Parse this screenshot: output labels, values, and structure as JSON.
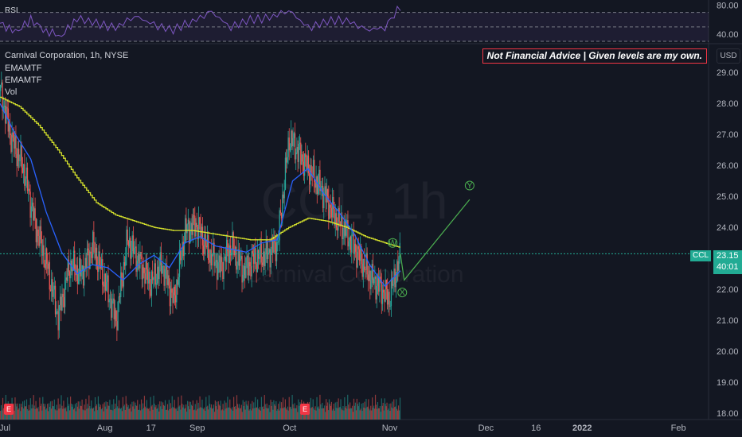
{
  "header": {
    "rsi_label": "RSI",
    "symbol_title": "Carnival Corporation, 1h, NYSE",
    "indicators": [
      "EMAMTF",
      "EMAMTF",
      "Vol"
    ],
    "notice": "Not Financial Advice | Given levels are my own.",
    "currency": "USD",
    "watermark": "CCL, 1h",
    "watermark_sub": "Carnival Corporation"
  },
  "last_price": {
    "ticker": "CCL",
    "price": "23.15",
    "countdown": "40:01",
    "color": "#22ab94"
  },
  "earnings_markers": [
    "E",
    "E"
  ],
  "chart_data": [
    {
      "type": "line",
      "name": "RSI",
      "y_ticks": [
        "80.00",
        "40.00"
      ],
      "ylim": [
        30,
        85
      ],
      "levels": [
        70,
        50,
        30
      ],
      "x": [
        0,
        4,
        8,
        12,
        16,
        20,
        25,
        30,
        35,
        40,
        45,
        50,
        55,
        60,
        65,
        70,
        75,
        80,
        85,
        90,
        95,
        100,
        104
      ],
      "values": [
        55,
        42,
        60,
        44,
        38,
        62,
        55,
        48,
        66,
        52,
        46,
        58,
        70,
        50,
        60,
        62,
        74,
        48,
        58,
        60,
        45,
        50,
        78
      ],
      "color": "#7e57c2"
    },
    {
      "type": "line",
      "title": "Carnival Corporation, 1h, NYSE",
      "x_ticks": [
        {
          "label": "Jul",
          "x": 0
        },
        {
          "label": "Aug",
          "x": 26
        },
        {
          "label": "17",
          "x": 38
        },
        {
          "label": "Sep",
          "x": 50
        },
        {
          "label": "Oct",
          "x": 74
        },
        {
          "label": "Nov",
          "x": 100
        },
        {
          "label": "Dec",
          "x": 125
        },
        {
          "label": "16",
          "x": 138
        },
        {
          "label": "2022",
          "x": 150
        },
        {
          "label": "Feb",
          "x": 175
        }
      ],
      "y_ticks": [
        "29.00",
        "28.00",
        "27.00",
        "26.00",
        "25.00",
        "24.00",
        "22.00",
        "21.00",
        "20.00",
        "19.00",
        "18.00"
      ],
      "ylim": [
        17.8,
        29.8
      ],
      "series": [
        {
          "name": "EMAMTF",
          "color": "#d4e02c",
          "x": [
            0,
            5,
            10,
            15,
            20,
            25,
            30,
            35,
            40,
            45,
            50,
            55,
            60,
            65,
            70,
            75,
            80,
            85,
            90,
            95,
            100,
            104
          ],
          "values": [
            28.2,
            27.9,
            27.3,
            26.5,
            25.6,
            24.8,
            24.4,
            24.2,
            24.0,
            23.9,
            23.9,
            23.8,
            23.7,
            23.6,
            23.6,
            24.0,
            24.3,
            24.2,
            24.0,
            23.7,
            23.5,
            23.35
          ]
        },
        {
          "name": "EMAMTF",
          "color": "#2962ff",
          "x": [
            0,
            4,
            8,
            12,
            16,
            20,
            24,
            28,
            32,
            36,
            40,
            44,
            48,
            52,
            56,
            60,
            64,
            68,
            72,
            76,
            80,
            84,
            88,
            92,
            96,
            100,
            104
          ],
          "values": [
            28.0,
            27.0,
            26.2,
            24.5,
            23.2,
            22.5,
            22.8,
            22.7,
            22.3,
            22.8,
            23.1,
            22.7,
            23.5,
            23.7,
            23.4,
            23.3,
            23.2,
            23.5,
            23.6,
            25.5,
            25.9,
            25.1,
            24.5,
            23.8,
            22.8,
            22.1,
            22.6
          ]
        },
        {
          "name": "Price",
          "color": "#26a69a",
          "x": [
            0,
            3,
            6,
            9,
            12,
            15,
            18,
            21,
            24,
            27,
            30,
            33,
            36,
            39,
            42,
            45,
            48,
            51,
            54,
            57,
            60,
            63,
            66,
            69,
            72,
            75,
            78,
            81,
            84,
            87,
            90,
            93,
            96,
            99,
            101,
            104
          ],
          "values": [
            28.4,
            26.8,
            25.9,
            24.1,
            22.8,
            21.1,
            22.8,
            22.5,
            23.4,
            22.3,
            21.0,
            23.6,
            22.9,
            22.2,
            22.8,
            21.6,
            23.9,
            24.1,
            23.2,
            22.7,
            23.4,
            22.6,
            23.0,
            23.1,
            23.5,
            26.9,
            26.3,
            25.7,
            25.1,
            24.3,
            23.8,
            23.1,
            22.4,
            22.0,
            21.7,
            23.15
          ]
        },
        {
          "name": "Projection",
          "color": "#4caf50",
          "x": [
            104,
            105,
            122
          ],
          "values": [
            23.15,
            22.3,
            24.9
          ]
        }
      ],
      "annotations": [
        {
          "label": "W",
          "x": 102,
          "y": 23.5
        },
        {
          "label": "X",
          "x": 104.5,
          "y": 21.9
        },
        {
          "label": "Y",
          "x": 122,
          "y": 25.35
        }
      ],
      "volume": {
        "color_up": "#26a69a",
        "color_down": "#ef5350",
        "pattern": [
          0.3,
          0.5,
          0.2,
          0.8,
          0.4,
          0.6,
          0.3,
          0.9,
          0.5,
          0.4,
          0.7,
          0.3
        ]
      }
    }
  ]
}
